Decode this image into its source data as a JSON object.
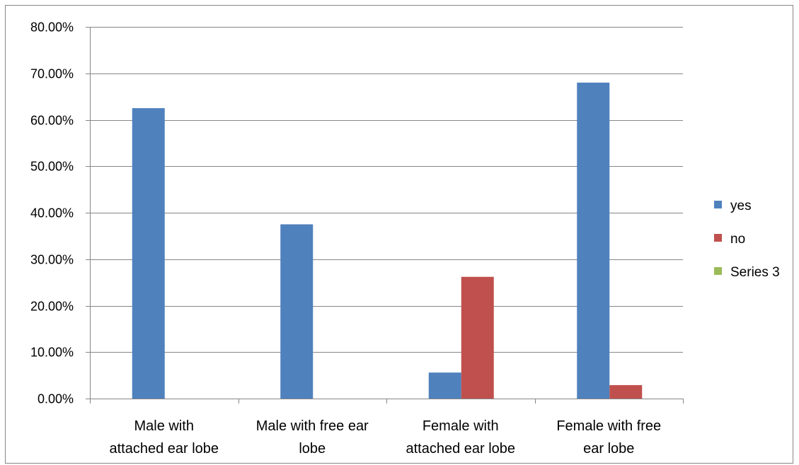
{
  "chart_data": {
    "type": "bar",
    "categories": [
      [
        "Male with",
        "attached ear lobe"
      ],
      [
        "Male with free ear",
        "lobe"
      ],
      [
        "Female with",
        "attached ear lobe"
      ],
      [
        "Female with free",
        "ear lobe"
      ]
    ],
    "series": [
      {
        "name": "yes",
        "color": "#4F81BD",
        "values": [
          0.625,
          0.375,
          0.056,
          0.68
        ]
      },
      {
        "name": "no",
        "color": "#C0504D",
        "values": [
          0,
          0,
          0.262,
          0.029
        ]
      },
      {
        "name": "Series 3",
        "color": "#9BBB59",
        "values": [
          0,
          0,
          0,
          0
        ]
      }
    ],
    "ylim": [
      0,
      0.8
    ],
    "yticks": [
      0,
      0.1,
      0.2,
      0.3,
      0.4,
      0.5,
      0.6,
      0.7,
      0.8
    ],
    "ytick_labels": [
      "0.00%",
      "10.00%",
      "20.00%",
      "30.00%",
      "40.00%",
      "50.00%",
      "60.00%",
      "70.00%",
      "80.00%"
    ],
    "grid": true,
    "legend_position": "right",
    "title": "",
    "xlabel": "",
    "ylabel": ""
  }
}
